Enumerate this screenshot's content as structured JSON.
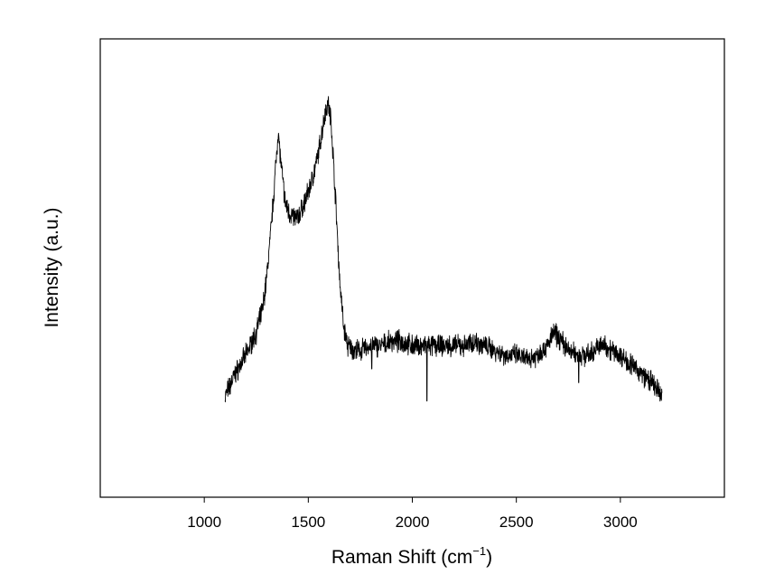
{
  "chart_data": {
    "type": "line",
    "title": "",
    "xlabel": "Raman Shift (cm",
    "xlabel_superscript": "−1",
    "xlabel_suffix": ")",
    "ylabel": "Intensity (a.u.)",
    "xlim": [
      500,
      3500
    ],
    "ylim": [
      0,
      1
    ],
    "x_ticks": [
      1000,
      1500,
      2000,
      2500,
      3000
    ],
    "x_tick_labels": [
      "1000",
      "1500",
      "2000",
      "2500",
      "3000"
    ],
    "y_tick_labels_shown": false,
    "grid": false,
    "legend": "none",
    "line_color": "#000000",
    "series": [
      {
        "x": [
          1100,
          1150,
          1200,
          1250,
          1280,
          1300,
          1320,
          1340,
          1355,
          1370,
          1390,
          1410,
          1430,
          1450,
          1480,
          1510,
          1540,
          1560,
          1580,
          1595,
          1610,
          1630,
          1650,
          1670,
          1690,
          1720,
          1750,
          1800,
          1850,
          1900,
          1950,
          2000,
          2050,
          2100,
          2150,
          2200,
          2250,
          2300,
          2350,
          2400,
          2450,
          2500,
          2550,
          2600,
          2650,
          2680,
          2700,
          2720,
          2750,
          2800,
          2850,
          2900,
          2930,
          2960,
          3000,
          3050,
          3100,
          3150,
          3200
        ],
        "y": [
          0.22,
          0.27,
          0.31,
          0.36,
          0.41,
          0.48,
          0.58,
          0.7,
          0.8,
          0.72,
          0.64,
          0.62,
          0.61,
          0.61,
          0.64,
          0.68,
          0.73,
          0.78,
          0.84,
          0.86,
          0.82,
          0.66,
          0.48,
          0.37,
          0.33,
          0.32,
          0.32,
          0.33,
          0.33,
          0.34,
          0.34,
          0.33,
          0.33,
          0.33,
          0.33,
          0.33,
          0.33,
          0.34,
          0.33,
          0.32,
          0.31,
          0.31,
          0.3,
          0.31,
          0.33,
          0.36,
          0.35,
          0.34,
          0.32,
          0.31,
          0.31,
          0.33,
          0.33,
          0.32,
          0.31,
          0.29,
          0.27,
          0.25,
          0.22
        ]
      }
    ],
    "annotations": [
      {
        "x": 2070,
        "y": 0.21,
        "note": "negative spike"
      },
      {
        "x": 1805,
        "y": 0.28,
        "note": "negative spike"
      },
      {
        "x": 2800,
        "y": 0.25,
        "note": "negative spike"
      }
    ]
  }
}
